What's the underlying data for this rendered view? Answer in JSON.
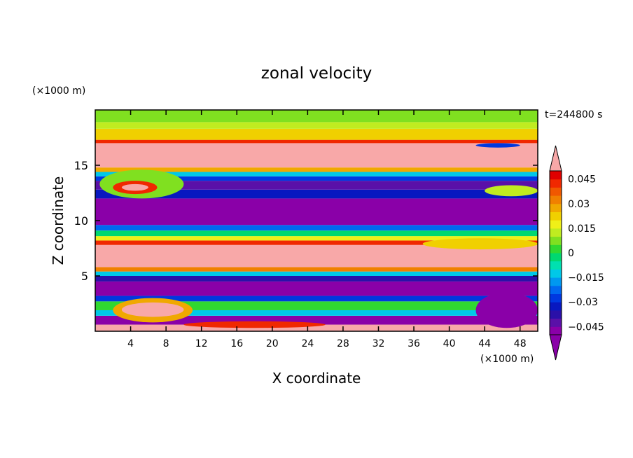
{
  "chart_data": {
    "type": "heatmap",
    "title": "zonal velocity",
    "xlabel": "X coordinate",
    "ylabel": "Z coordinate",
    "x_unit": "(×1000 m)",
    "y_unit": "(×1000 m)",
    "time_label": "t=244800 s",
    "xlim": [
      0,
      50
    ],
    "ylim": [
      0,
      20
    ],
    "x_ticks": [
      4,
      8,
      12,
      16,
      20,
      24,
      28,
      32,
      36,
      40,
      44,
      48
    ],
    "y_ticks": [
      5,
      10,
      15
    ],
    "colorbar": {
      "levels": [
        -0.05,
        -0.045,
        -0.04,
        -0.035,
        -0.03,
        -0.025,
        -0.02,
        -0.015,
        -0.01,
        -0.005,
        0,
        0.005,
        0.01,
        0.015,
        0.02,
        0.025,
        0.03,
        0.035,
        0.04,
        0.045,
        0.05
      ],
      "tick_values": [
        0.045,
        0.03,
        0.015,
        0,
        -0.015,
        -0.03,
        -0.045
      ],
      "tick_labels": [
        "0.045",
        "0.03",
        "0.015",
        "0",
        "−0.015",
        "−0.03",
        "−0.045"
      ],
      "colors": [
        "#8a00a8",
        "#5a10a8",
        "#2a10a8",
        "#0818c0",
        "#0038e0",
        "#0068f0",
        "#0098f0",
        "#00c8e8",
        "#00e0b0",
        "#00d870",
        "#30d830",
        "#80e020",
        "#c0ec20",
        "#f0f018",
        "#f0d000",
        "#f0a800",
        "#f08000",
        "#f05800",
        "#f02800",
        "#e00000"
      ],
      "under_color": "#8a00a8",
      "over_color": "#f8a8a8"
    },
    "bands": [
      {
        "z0": 0.0,
        "z1": 0.6,
        "value": 0.06
      },
      {
        "z0": 0.6,
        "z1": 1.4,
        "value": -0.048
      },
      {
        "z0": 1.4,
        "z1": 1.9,
        "value": -0.012
      },
      {
        "z0": 1.9,
        "z1": 2.7,
        "value": 0.002
      },
      {
        "z0": 2.7,
        "z1": 3.2,
        "value": -0.03
      },
      {
        "z0": 3.2,
        "z1": 4.5,
        "value": -0.06
      },
      {
        "z0": 4.5,
        "z1": 5.0,
        "value": -0.04
      },
      {
        "z0": 5.0,
        "z1": 5.4,
        "value": -0.012
      },
      {
        "z0": 5.4,
        "z1": 5.8,
        "value": 0.03
      },
      {
        "z0": 5.8,
        "z1": 7.8,
        "value": 0.06
      },
      {
        "z0": 7.8,
        "z1": 8.2,
        "value": 0.04
      },
      {
        "z0": 8.2,
        "z1": 8.6,
        "value": 0.018
      },
      {
        "z0": 8.6,
        "z1": 9.1,
        "value": -0.005
      },
      {
        "z0": 9.1,
        "z1": 9.6,
        "value": -0.025
      },
      {
        "z0": 9.6,
        "z1": 12.0,
        "value": -0.06
      },
      {
        "z0": 12.0,
        "z1": 12.8,
        "value": -0.035
      },
      {
        "z0": 12.8,
        "z1": 13.6,
        "value": -0.045
      },
      {
        "z0": 13.6,
        "z1": 14.0,
        "value": -0.03
      },
      {
        "z0": 14.0,
        "z1": 14.4,
        "value": -0.015
      },
      {
        "z0": 14.4,
        "z1": 14.8,
        "value": 0.025
      },
      {
        "z0": 14.8,
        "z1": 17.0,
        "value": 0.06
      },
      {
        "z0": 17.0,
        "z1": 17.3,
        "value": 0.04
      },
      {
        "z0": 17.3,
        "z1": 18.3,
        "value": 0.02
      },
      {
        "z0": 18.3,
        "z1": 18.9,
        "value": 0.012
      },
      {
        "z0": 18.9,
        "z1": 20.0,
        "value": 0.005
      }
    ],
    "blobs": [
      {
        "x0": 0.5,
        "x1": 10,
        "z0": 12.0,
        "z1": 14.6,
        "value": 0.008
      },
      {
        "x0": 2,
        "x1": 7,
        "z0": 12.4,
        "z1": 13.6,
        "value": 0.04
      },
      {
        "x0": 3,
        "x1": 6,
        "z0": 12.7,
        "z1": 13.3,
        "value": 0.06
      },
      {
        "x0": 2,
        "x1": 11,
        "z0": 0.8,
        "z1": 3.0,
        "value": 0.025
      },
      {
        "x0": 3,
        "x1": 10,
        "z0": 1.3,
        "z1": 2.6,
        "value": 0.06
      },
      {
        "x0": 10,
        "x1": 26,
        "z0": 0.3,
        "z1": 0.9,
        "value": 0.04
      },
      {
        "x0": 37,
        "x1": 50,
        "z0": 7.4,
        "z1": 8.4,
        "value": 0.02
      },
      {
        "x0": 43,
        "x1": 48,
        "z0": 16.6,
        "z1": 17.0,
        "value": -0.03
      },
      {
        "x0": 44,
        "x1": 50,
        "z0": 12.2,
        "z1": 13.2,
        "value": 0.01
      },
      {
        "x0": 43,
        "x1": 50,
        "z0": 0.3,
        "z1": 3.5,
        "value": -0.06
      }
    ]
  }
}
